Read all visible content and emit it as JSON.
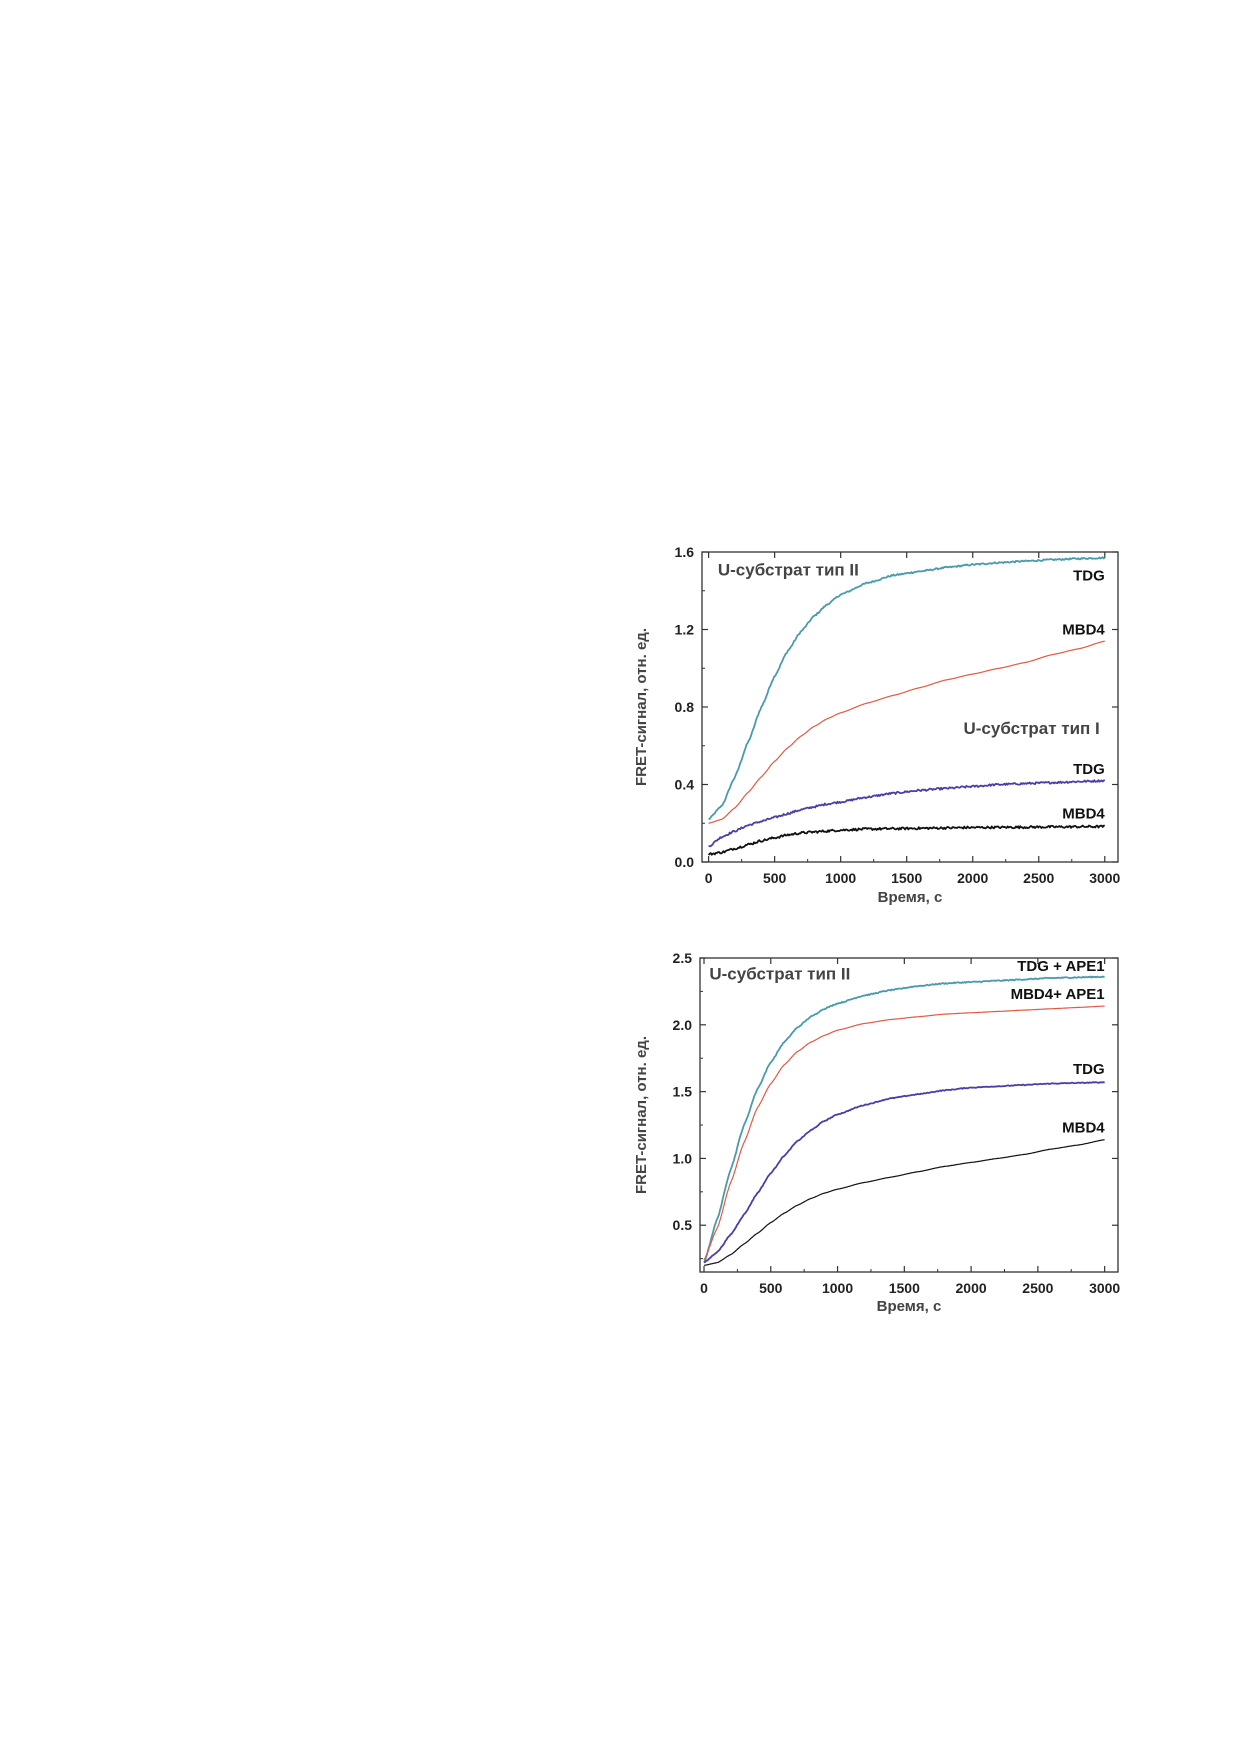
{
  "chart_data": [
    {
      "type": "line",
      "xlabel": "Время, с",
      "ylabel": "FRET-сигнал, отн. ед.",
      "xlim": [
        -50,
        3100
      ],
      "ylim": [
        0,
        1.6
      ],
      "xticks": [
        0,
        500,
        1000,
        1500,
        2000,
        2500,
        3000
      ],
      "xtick_labels": [
        "0",
        "500",
        "1000",
        "1500",
        "2000",
        "2500",
        "3000"
      ],
      "yticks": [
        0,
        0.4,
        0.8,
        1.2,
        1.6
      ],
      "ytick_labels": [
        "0.0",
        "0.4",
        "0.8",
        "1.2",
        "1.6"
      ],
      "grid": false,
      "annotations": [
        {
          "text": "U-субстрат тип II",
          "x": 70,
          "y": 1.48
        },
        {
          "text": "U-субстрат тип I",
          "x": 1930,
          "y": 0.66
        }
      ],
      "series": [
        {
          "name": "TDG",
          "color": "#4a9aae",
          "noise": 0.004,
          "label": {
            "x": 3000,
            "y": 1.48
          },
          "x": [
            0,
            100,
            200,
            300,
            400,
            500,
            600,
            700,
            800,
            900,
            1000,
            1200,
            1400,
            1600,
            1800,
            2000,
            2200,
            2400,
            2600,
            2800,
            3000
          ],
          "y": [
            0.22,
            0.29,
            0.44,
            0.62,
            0.8,
            0.96,
            1.09,
            1.19,
            1.27,
            1.33,
            1.38,
            1.44,
            1.48,
            1.5,
            1.52,
            1.535,
            1.545,
            1.553,
            1.56,
            1.566,
            1.57
          ]
        },
        {
          "name": "MBD4",
          "color": "#e05a44",
          "noise": 0,
          "label": {
            "x": 3000,
            "y": 1.2
          },
          "x": [
            0,
            100,
            200,
            300,
            400,
            500,
            600,
            700,
            800,
            900,
            1000,
            1200,
            1400,
            1600,
            1800,
            2000,
            2200,
            2400,
            2600,
            2800,
            3000
          ],
          "y": [
            0.2,
            0.22,
            0.28,
            0.36,
            0.44,
            0.52,
            0.59,
            0.65,
            0.7,
            0.74,
            0.77,
            0.82,
            0.86,
            0.9,
            0.94,
            0.97,
            1.0,
            1.03,
            1.07,
            1.1,
            1.14
          ]
        },
        {
          "name": "TDG",
          "color": "#4a3ea8",
          "noise": 0.005,
          "label": {
            "x": 3000,
            "y": 0.48
          },
          "x": [
            0,
            100,
            200,
            300,
            400,
            500,
            600,
            700,
            800,
            900,
            1000,
            1200,
            1400,
            1600,
            1800,
            2000,
            2200,
            2400,
            2600,
            2800,
            3000
          ],
          "y": [
            0.08,
            0.13,
            0.16,
            0.19,
            0.21,
            0.23,
            0.25,
            0.27,
            0.285,
            0.3,
            0.31,
            0.335,
            0.355,
            0.37,
            0.38,
            0.39,
            0.4,
            0.405,
            0.41,
            0.415,
            0.42
          ]
        },
        {
          "name": "MBD4",
          "color": "#111111",
          "noise": 0.006,
          "label": {
            "x": 3000,
            "y": 0.25
          },
          "x": [
            0,
            100,
            200,
            300,
            400,
            500,
            600,
            700,
            800,
            900,
            1000,
            1200,
            1400,
            1600,
            1800,
            2000,
            2200,
            2400,
            2600,
            2800,
            3000
          ],
          "y": [
            0.04,
            0.05,
            0.07,
            0.09,
            0.11,
            0.125,
            0.14,
            0.15,
            0.155,
            0.16,
            0.165,
            0.17,
            0.172,
            0.174,
            0.176,
            0.178,
            0.179,
            0.18,
            0.181,
            0.182,
            0.183
          ]
        }
      ]
    },
    {
      "type": "line",
      "xlabel": "Время, с",
      "ylabel": "FRET-сигнал, отн. ед.",
      "xlim": [
        -30,
        3100
      ],
      "ylim": [
        0.15,
        2.5
      ],
      "xticks": [
        0,
        500,
        1000,
        1500,
        2000,
        2500,
        3000
      ],
      "xtick_labels": [
        "0",
        "500",
        "1000",
        "1500",
        "2000",
        "2500",
        "3000"
      ],
      "yticks": [
        0.5,
        1.0,
        1.5,
        2.0,
        2.5
      ],
      "ytick_labels": [
        "0.5",
        "1.0",
        "1.5",
        "2.0",
        "2.5"
      ],
      "grid": false,
      "annotations": [
        {
          "text": "U-субстрат тип II",
          "x": 40,
          "y": 2.34
        }
      ],
      "series": [
        {
          "name": "TDG + APE1",
          "color": "#4a9aae",
          "noise": 0.004,
          "label": {
            "x": 3000,
            "y": 2.44
          },
          "x": [
            0,
            100,
            200,
            300,
            400,
            500,
            600,
            700,
            800,
            900,
            1000,
            1200,
            1400,
            1600,
            1800,
            2000,
            2200,
            2400,
            2600,
            2800,
            3000
          ],
          "y": [
            0.22,
            0.55,
            0.92,
            1.25,
            1.52,
            1.72,
            1.87,
            1.98,
            2.06,
            2.12,
            2.16,
            2.22,
            2.26,
            2.29,
            2.31,
            2.32,
            2.33,
            2.34,
            2.35,
            2.355,
            2.36
          ]
        },
        {
          "name": "MBD4+ APE1",
          "color": "#e05a44",
          "noise": 0,
          "label": {
            "x": 3000,
            "y": 2.23
          },
          "x": [
            0,
            100,
            200,
            300,
            400,
            500,
            600,
            700,
            800,
            900,
            1000,
            1200,
            1400,
            1600,
            1800,
            2000,
            2200,
            2400,
            2600,
            2800,
            3000
          ],
          "y": [
            0.24,
            0.48,
            0.82,
            1.12,
            1.38,
            1.56,
            1.7,
            1.8,
            1.87,
            1.92,
            1.96,
            2.01,
            2.04,
            2.06,
            2.08,
            2.09,
            2.1,
            2.11,
            2.12,
            2.13,
            2.14
          ]
        },
        {
          "name": "TDG",
          "color": "#4a3ea8",
          "noise": 0.003,
          "label": {
            "x": 3000,
            "y": 1.67
          },
          "x": [
            0,
            100,
            200,
            300,
            400,
            500,
            600,
            700,
            800,
            900,
            1000,
            1200,
            1400,
            1600,
            1800,
            2000,
            2200,
            2400,
            2600,
            2800,
            3000
          ],
          "y": [
            0.22,
            0.3,
            0.43,
            0.58,
            0.74,
            0.89,
            1.02,
            1.13,
            1.21,
            1.28,
            1.33,
            1.4,
            1.45,
            1.48,
            1.51,
            1.53,
            1.54,
            1.55,
            1.56,
            1.565,
            1.57
          ]
        },
        {
          "name": "MBD4",
          "color": "#111111",
          "noise": 0,
          "label": {
            "x": 3000,
            "y": 1.23
          },
          "x": [
            0,
            100,
            200,
            300,
            400,
            500,
            600,
            700,
            800,
            900,
            1000,
            1200,
            1400,
            1600,
            1800,
            2000,
            2200,
            2400,
            2600,
            2800,
            3000
          ],
          "y": [
            0.2,
            0.22,
            0.28,
            0.36,
            0.44,
            0.52,
            0.59,
            0.65,
            0.7,
            0.74,
            0.77,
            0.82,
            0.86,
            0.9,
            0.94,
            0.97,
            1.0,
            1.03,
            1.07,
            1.1,
            1.14
          ]
        }
      ]
    }
  ]
}
